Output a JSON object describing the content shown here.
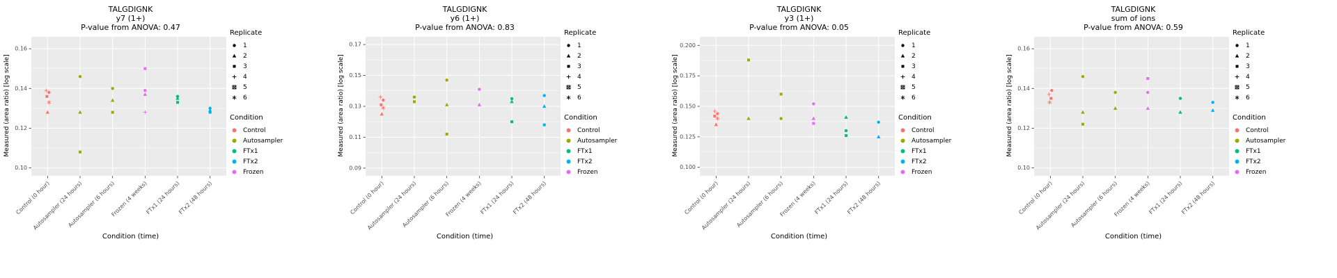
{
  "colors": {
    "panel_bg": "#EBEBEB",
    "grid": "#FFFFFF",
    "tick_text": "#4D4D4D",
    "axis_tick": "#333333"
  },
  "category_conditions": [
    "Control",
    "Autosampler",
    "Autosampler",
    "Frozen",
    "FTx1",
    "FTx2"
  ],
  "condition_colors": {
    "Control": "#F8766D",
    "Autosampler": "#A3A500",
    "FTx1": "#00BF7D",
    "FTx2": "#00B0F6",
    "Frozen": "#E76BF3"
  },
  "legend": {
    "replicate_title": "Replicate",
    "condition_title": "Condition",
    "replicates": [
      {
        "label": "1",
        "shape": "circle"
      },
      {
        "label": "2",
        "shape": "triangle"
      },
      {
        "label": "3",
        "shape": "square"
      },
      {
        "label": "4",
        "shape": "plus"
      },
      {
        "label": "5",
        "shape": "square-cross"
      },
      {
        "label": "6",
        "shape": "asterisk"
      }
    ],
    "conditions": [
      {
        "label": "Control",
        "color": "#F8766D"
      },
      {
        "label": "Autosampler",
        "color": "#A3A500"
      },
      {
        "label": "FTx1",
        "color": "#00BF7D"
      },
      {
        "label": "FTx2",
        "color": "#00B0F6"
      },
      {
        "label": "Frozen",
        "color": "#E76BF3"
      }
    ]
  },
  "chart_data": [
    {
      "type": "scatter",
      "title": "TALGDIGNK",
      "subtitle": "y7 (1+)",
      "pvalue": 0.47,
      "pvalue_label": "P-value from ANOVA: 0.47",
      "ylabel": "Measured (area ratio) [log scale]",
      "xlabel": "Condition (time)",
      "categories": [
        "Control (0 hour)",
        "Autosampler (24 hours)",
        "Autosampler (6 hours)",
        "Frozen (4 weeks)",
        "FTx1 (24 hours)",
        "FTx2 (48 hours)"
      ],
      "ylim": [
        0.096,
        0.166
      ],
      "yticks": [
        {
          "v": 0.1,
          "label": "0.10"
        },
        {
          "v": 0.12,
          "label": "0.12"
        },
        {
          "v": 0.14,
          "label": "0.14"
        },
        {
          "v": 0.16,
          "label": "0.16"
        }
      ],
      "points": [
        {
          "c": 0,
          "y": 0.139,
          "rep": 4,
          "dx": -2
        },
        {
          "c": 0,
          "y": 0.138,
          "rep": 1,
          "dx": 2
        },
        {
          "c": 0,
          "y": 0.136,
          "rep": 3,
          "dx": -1
        },
        {
          "c": 0,
          "y": 0.133,
          "rep": 6,
          "dx": 2
        },
        {
          "c": 0,
          "y": 0.128,
          "rep": 2,
          "dx": 0
        },
        {
          "c": 1,
          "y": 0.146,
          "rep": 1
        },
        {
          "c": 1,
          "y": 0.128,
          "rep": 2
        },
        {
          "c": 1,
          "y": 0.108,
          "rep": 3
        },
        {
          "c": 2,
          "y": 0.14,
          "rep": 1
        },
        {
          "c": 2,
          "y": 0.134,
          "rep": 2
        },
        {
          "c": 2,
          "y": 0.128,
          "rep": 3
        },
        {
          "c": 3,
          "y": 0.15,
          "rep": 3
        },
        {
          "c": 3,
          "y": 0.139,
          "rep": 1
        },
        {
          "c": 3,
          "y": 0.137,
          "rep": 2
        },
        {
          "c": 3,
          "y": 0.128,
          "rep": 4
        },
        {
          "c": 4,
          "y": 0.136,
          "rep": 1
        },
        {
          "c": 4,
          "y": 0.135,
          "rep": 2
        },
        {
          "c": 4,
          "y": 0.133,
          "rep": 3
        },
        {
          "c": 5,
          "y": 0.13,
          "rep": 1
        },
        {
          "c": 5,
          "y": 0.129,
          "rep": 2
        },
        {
          "c": 5,
          "y": 0.128,
          "rep": 3
        }
      ]
    },
    {
      "type": "scatter",
      "title": "TALGDIGNK",
      "subtitle": "y6 (1+)",
      "pvalue": 0.83,
      "pvalue_label": "P-value from ANOVA: 0.83",
      "ylabel": "Measured (area ratio) [log scale]",
      "xlabel": "Condition (time)",
      "categories": [
        "Control (0 hour)",
        "Autosampler (24 hours)",
        "Autosampler (6 hours)",
        "Frozen (4 weeks)",
        "FTx1 (24 hours)",
        "FTx2 (48 hours)"
      ],
      "ylim": [
        0.085,
        0.175
      ],
      "yticks": [
        {
          "v": 0.09,
          "label": "0.09"
        },
        {
          "v": 0.11,
          "label": "0.11"
        },
        {
          "v": 0.13,
          "label": "0.13"
        },
        {
          "v": 0.15,
          "label": "0.15"
        },
        {
          "v": 0.17,
          "label": "0.17"
        }
      ],
      "points": [
        {
          "c": 0,
          "y": 0.136,
          "rep": 4,
          "dx": -2
        },
        {
          "c": 0,
          "y": 0.134,
          "rep": 1,
          "dx": 2
        },
        {
          "c": 0,
          "y": 0.131,
          "rep": 3,
          "dx": -1
        },
        {
          "c": 0,
          "y": 0.129,
          "rep": 6,
          "dx": 2
        },
        {
          "c": 0,
          "y": 0.125,
          "rep": 2,
          "dx": 0
        },
        {
          "c": 1,
          "y": 0.136,
          "rep": 1
        },
        {
          "c": 1,
          "y": 0.133,
          "rep": 3
        },
        {
          "c": 2,
          "y": 0.147,
          "rep": 1
        },
        {
          "c": 2,
          "y": 0.131,
          "rep": 2
        },
        {
          "c": 2,
          "y": 0.112,
          "rep": 3
        },
        {
          "c": 3,
          "y": 0.141,
          "rep": 1
        },
        {
          "c": 3,
          "y": 0.131,
          "rep": 2
        },
        {
          "c": 4,
          "y": 0.135,
          "rep": 1
        },
        {
          "c": 4,
          "y": 0.133,
          "rep": 2
        },
        {
          "c": 4,
          "y": 0.12,
          "rep": 3
        },
        {
          "c": 5,
          "y": 0.137,
          "rep": 1
        },
        {
          "c": 5,
          "y": 0.13,
          "rep": 2
        },
        {
          "c": 5,
          "y": 0.118,
          "rep": 3
        }
      ]
    },
    {
      "type": "scatter",
      "title": "TALGDIGNK",
      "subtitle": "y3 (1+)",
      "pvalue": 0.05,
      "pvalue_label": "P-value from ANOVA: 0.05",
      "ylabel": "Measured (area ratio) [log scale]",
      "xlabel": "Condition (time)",
      "categories": [
        "Control (0 hour)",
        "Autosampler (24 hours)",
        "Autosampler (6 hours)",
        "Frozen (4 weeks)",
        "FTx1 (24 hours)",
        "FTx2 (48 hours)"
      ],
      "ylim": [
        0.093,
        0.207
      ],
      "yticks": [
        {
          "v": 0.1,
          "label": "0.100"
        },
        {
          "v": 0.125,
          "label": "0.125"
        },
        {
          "v": 0.15,
          "label": "0.150"
        },
        {
          "v": 0.175,
          "label": "0.175"
        },
        {
          "v": 0.2,
          "label": "0.200"
        }
      ],
      "points": [
        {
          "c": 0,
          "y": 0.146,
          "rep": 4,
          "dx": -2
        },
        {
          "c": 0,
          "y": 0.144,
          "rep": 1,
          "dx": 2
        },
        {
          "c": 0,
          "y": 0.142,
          "rep": 3,
          "dx": -2
        },
        {
          "c": 0,
          "y": 0.14,
          "rep": 6,
          "dx": 2
        },
        {
          "c": 0,
          "y": 0.135,
          "rep": 2,
          "dx": 0
        },
        {
          "c": 1,
          "y": 0.188,
          "rep": 3
        },
        {
          "c": 1,
          "y": 0.14,
          "rep": 2
        },
        {
          "c": 2,
          "y": 0.16,
          "rep": 3
        },
        {
          "c": 2,
          "y": 0.14,
          "rep": 1
        },
        {
          "c": 3,
          "y": 0.152,
          "rep": 1
        },
        {
          "c": 3,
          "y": 0.14,
          "rep": 2
        },
        {
          "c": 3,
          "y": 0.136,
          "rep": 3
        },
        {
          "c": 4,
          "y": 0.141,
          "rep": 2
        },
        {
          "c": 4,
          "y": 0.13,
          "rep": 1
        },
        {
          "c": 4,
          "y": 0.126,
          "rep": 3
        },
        {
          "c": 5,
          "y": 0.137,
          "rep": 1
        },
        {
          "c": 5,
          "y": 0.125,
          "rep": 2
        }
      ]
    },
    {
      "type": "scatter",
      "title": "TALGDIGNK",
      "subtitle": "sum of ions",
      "pvalue": 0.59,
      "pvalue_label": "P-value from ANOVA: 0.59",
      "ylabel": "Measured (area ratio) [log scale]",
      "xlabel": "Condition (time)",
      "categories": [
        "Control (0 hour)",
        "Autosampler (24 hours)",
        "Autosampler (6 hours)",
        "Frozen (4 weeks)",
        "FTx1 (24 hours)",
        "FTx2 (48 hours)"
      ],
      "ylim": [
        0.096,
        0.166
      ],
      "yticks": [
        {
          "v": 0.1,
          "label": "0.10"
        },
        {
          "v": 0.12,
          "label": "0.12"
        },
        {
          "v": 0.14,
          "label": "0.14"
        },
        {
          "v": 0.16,
          "label": "0.16"
        }
      ],
      "points": [
        {
          "c": 0,
          "y": 0.139,
          "rep": 1,
          "dx": 2
        },
        {
          "c": 0,
          "y": 0.137,
          "rep": 4,
          "dx": -2
        },
        {
          "c": 0,
          "y": 0.135,
          "rep": 3,
          "dx": 1
        },
        {
          "c": 0,
          "y": 0.133,
          "rep": 6,
          "dx": -1
        },
        {
          "c": 1,
          "y": 0.146,
          "rep": 1
        },
        {
          "c": 1,
          "y": 0.128,
          "rep": 2
        },
        {
          "c": 1,
          "y": 0.122,
          "rep": 3
        },
        {
          "c": 2,
          "y": 0.138,
          "rep": 1
        },
        {
          "c": 2,
          "y": 0.13,
          "rep": 2
        },
        {
          "c": 3,
          "y": 0.145,
          "rep": 3
        },
        {
          "c": 3,
          "y": 0.138,
          "rep": 1
        },
        {
          "c": 3,
          "y": 0.13,
          "rep": 2
        },
        {
          "c": 4,
          "y": 0.135,
          "rep": 1
        },
        {
          "c": 4,
          "y": 0.128,
          "rep": 2
        },
        {
          "c": 5,
          "y": 0.133,
          "rep": 1
        },
        {
          "c": 5,
          "y": 0.129,
          "rep": 2
        }
      ]
    }
  ]
}
